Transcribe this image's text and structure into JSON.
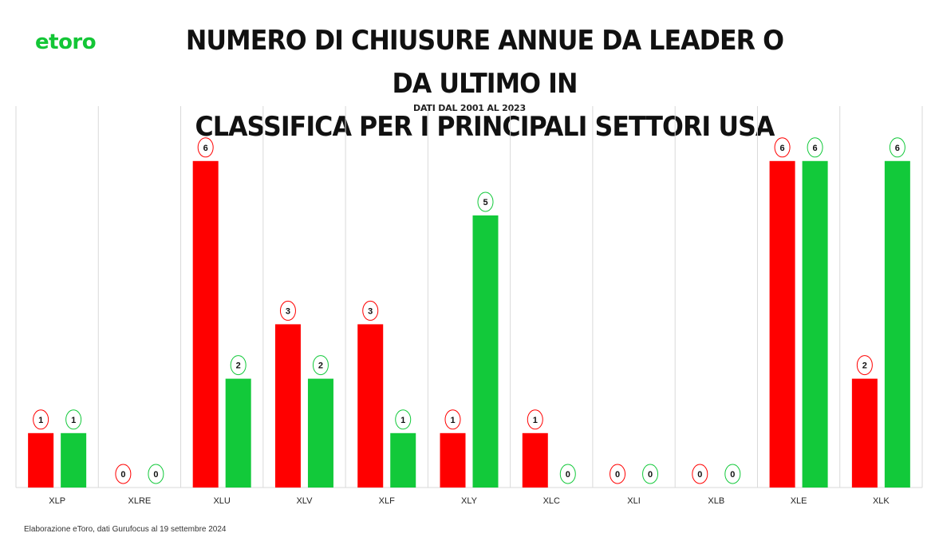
{
  "logo": {
    "text": "etoro",
    "color": "#13c636"
  },
  "title_line1": "NUMERO DI CHIUSURE ANNUE DA LEADER O DA ULTIMO IN",
  "title_line2": "CLASSIFICA PER I PRINCIPALI SETTORI USA",
  "subtitle": "DATI DAL 2001 AL 2023",
  "source": "Elaborazione eToro, dati Gurufocus al 19 settembre 2024",
  "colors": {
    "red": "#ff0000",
    "green": "#12c93a"
  },
  "chart_data": {
    "type": "bar",
    "categories": [
      "XLP",
      "XLRE",
      "XLU",
      "XLV",
      "XLF",
      "XLY",
      "XLC",
      "XLI",
      "XLB",
      "XLE",
      "XLK"
    ],
    "series": [
      {
        "values": [
          1,
          0,
          6,
          3,
          3,
          1,
          1,
          0,
          0,
          6,
          2
        ],
        "color": "#ff0000"
      },
      {
        "values": [
          1,
          0,
          2,
          2,
          1,
          5,
          0,
          0,
          0,
          6,
          6
        ],
        "color": "#12c93a"
      }
    ],
    "ylim": [
      0,
      6.6
    ],
    "grid": "vertical separators",
    "data_labels": "circled, above bars"
  }
}
